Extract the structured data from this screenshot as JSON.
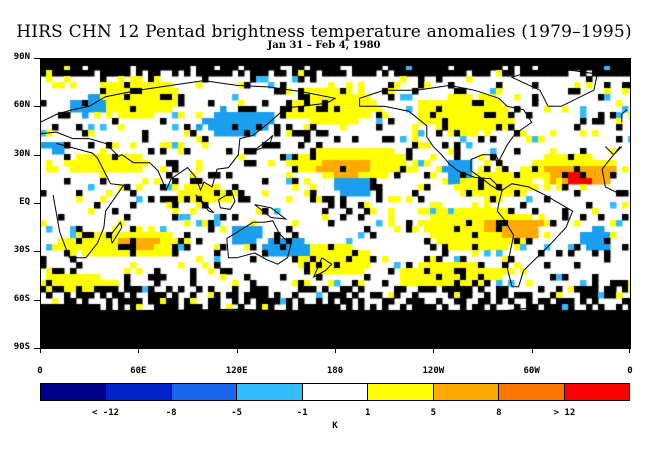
{
  "title": "HIRS CHN 12 Pentad brightness temperature anomalies (1979–1995)",
  "subtitle": "Jan 31 – Feb 4, 1980",
  "map": {
    "projection": "equirectangular",
    "lon_range": [
      0,
      360
    ],
    "lat_range": [
      -90,
      90
    ],
    "missing_color": "#000000",
    "coastline_color": "#000000",
    "y_ticks": [
      {
        "lat": 90,
        "label": "90N"
      },
      {
        "lat": 60,
        "label": "60N"
      },
      {
        "lat": 30,
        "label": "30N"
      },
      {
        "lat": 0,
        "label": "EQ"
      },
      {
        "lat": -30,
        "label": "30S"
      },
      {
        "lat": -60,
        "label": "60S"
      },
      {
        "lat": -90,
        "label": "90S"
      }
    ],
    "x_ticks": [
      {
        "lon": 0,
        "label": "0"
      },
      {
        "lon": 60,
        "label": "60E"
      },
      {
        "lon": 120,
        "label": "120E"
      },
      {
        "lon": 180,
        "label": "180"
      },
      {
        "lon": 240,
        "label": "120W"
      },
      {
        "lon": 300,
        "label": "60W"
      },
      {
        "lon": 360,
        "label": "0"
      }
    ],
    "anomaly_regions": [
      {
        "class": "warm",
        "lon": 60,
        "lat": 65,
        "rx": 25,
        "ry": 12
      },
      {
        "class": "cool",
        "lon": 120,
        "lat": 50,
        "rx": 22,
        "ry": 8
      },
      {
        "class": "cool",
        "lon": 30,
        "lat": 60,
        "rx": 12,
        "ry": 6
      },
      {
        "class": "warm",
        "lon": 180,
        "lat": 60,
        "rx": 25,
        "ry": 12
      },
      {
        "class": "warm",
        "lon": 260,
        "lat": 55,
        "rx": 30,
        "ry": 12
      },
      {
        "class": "warm",
        "lon": 190,
        "lat": 25,
        "rx": 35,
        "ry": 10
      },
      {
        "class": "hot",
        "lon": 185,
        "lat": 22,
        "rx": 18,
        "ry": 5
      },
      {
        "class": "cool",
        "lon": 190,
        "lat": 10,
        "rx": 12,
        "ry": 6
      },
      {
        "class": "warm",
        "lon": 40,
        "lat": 25,
        "rx": 25,
        "ry": 7
      },
      {
        "class": "warm",
        "lon": 275,
        "lat": 12,
        "rx": 28,
        "ry": 9
      },
      {
        "class": "cool",
        "lon": 255,
        "lat": 20,
        "rx": 8,
        "ry": 8
      },
      {
        "class": "warm",
        "lon": 325,
        "lat": 20,
        "rx": 30,
        "ry": 10
      },
      {
        "class": "hot",
        "lon": 330,
        "lat": 18,
        "rx": 22,
        "ry": 6
      },
      {
        "class": "extreme",
        "lon": 328,
        "lat": 15,
        "rx": 7,
        "ry": 3
      },
      {
        "class": "warm",
        "lon": 270,
        "lat": -15,
        "rx": 38,
        "ry": 14
      },
      {
        "class": "hot",
        "lon": 290,
        "lat": -15,
        "rx": 18,
        "ry": 6
      },
      {
        "class": "warm",
        "lon": 50,
        "lat": -25,
        "rx": 40,
        "ry": 9
      },
      {
        "class": "hot",
        "lon": 60,
        "lat": -25,
        "rx": 15,
        "ry": 4
      },
      {
        "class": "cool",
        "lon": 150,
        "lat": -28,
        "rx": 14,
        "ry": 6
      },
      {
        "class": "cool",
        "lon": 125,
        "lat": -20,
        "rx": 10,
        "ry": 7
      },
      {
        "class": "warm",
        "lon": 180,
        "lat": -35,
        "rx": 22,
        "ry": 10
      },
      {
        "class": "warm",
        "lon": 250,
        "lat": -45,
        "rx": 35,
        "ry": 8
      },
      {
        "class": "cool",
        "lon": 340,
        "lat": -22,
        "rx": 10,
        "ry": 6
      },
      {
        "class": "warm",
        "lon": 100,
        "lat": 5,
        "rx": 18,
        "ry": 6
      },
      {
        "class": "warm",
        "lon": 20,
        "lat": -50,
        "rx": 25,
        "ry": 6
      },
      {
        "class": "cool",
        "lon": 10,
        "lat": 35,
        "rx": 8,
        "ry": 4
      }
    ]
  },
  "colorbar": {
    "colors": [
      "#00008b",
      "#0022cc",
      "#1a66ee",
      "#33bbff",
      "#ffffff",
      "#ffff00",
      "#ffaa00",
      "#ff7700",
      "#ff0000"
    ],
    "labels": [
      {
        "value": "< -12",
        "pos": 1
      },
      {
        "value": "-8",
        "pos": 2
      },
      {
        "value": "-5",
        "pos": 3
      },
      {
        "value": "-1",
        "pos": 4
      },
      {
        "value": "1",
        "pos": 5
      },
      {
        "value": "5",
        "pos": 6
      },
      {
        "value": "8",
        "pos": 7
      },
      {
        "value": "> 12",
        "pos": 8
      }
    ],
    "unit": "K"
  }
}
